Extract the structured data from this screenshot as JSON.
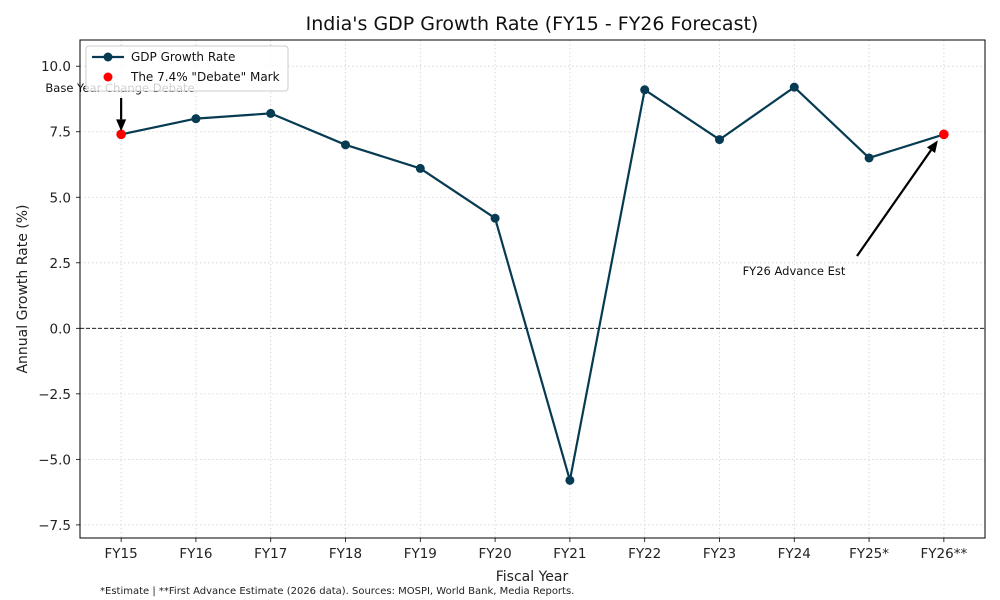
{
  "chart_data": {
    "type": "line",
    "title": "India's GDP Growth Rate (FY15 - FY26 Forecast)",
    "xlabel": "Fiscal Year",
    "ylabel": "Annual Growth Rate (%)",
    "categories": [
      "FY15",
      "FY16",
      "FY17",
      "FY18",
      "FY19",
      "FY20",
      "FY21",
      "FY22",
      "FY23",
      "FY24",
      "FY25*",
      "FY26**"
    ],
    "series": [
      {
        "name": "GDP Growth Rate",
        "color": "#073b52",
        "values": [
          7.4,
          8.0,
          8.2,
          7.0,
          6.1,
          4.2,
          -5.8,
          9.1,
          7.2,
          9.2,
          6.5,
          7.4
        ]
      },
      {
        "name": "The 7.4% \"Debate\" Mark",
        "color": "#ff0000",
        "type": "scatter",
        "points": [
          {
            "category": "FY15",
            "value": 7.4
          },
          {
            "category": "FY26**",
            "value": 7.4
          }
        ]
      }
    ],
    "ylim": [
      -8.0,
      11.0
    ],
    "yticks": [
      -7.5,
      -5.0,
      -2.5,
      0.0,
      2.5,
      5.0,
      7.5,
      10.0
    ],
    "ytick_labels": [
      "−7.5",
      "−5.0",
      "−2.5",
      "0.0",
      "2.5",
      "5.0",
      "7.5",
      "10.0"
    ],
    "grid": true,
    "reference_line": {
      "y": 0.0,
      "style": "dashed",
      "color": "#000000"
    },
    "legend": {
      "position": "top-left",
      "entries": [
        "GDP Growth Rate",
        "The 7.4% \"Debate\" Mark"
      ]
    },
    "annotations": [
      {
        "text": "Base Year Change Debate",
        "target_category": "FY15",
        "target_value": 7.4
      },
      {
        "text": "FY26 Advance Est",
        "target_category": "FY26**",
        "target_value": 7.4
      }
    ],
    "footnote": "*Estimate | **First Advance Estimate (2026 data). Sources: MOSPI, World Bank, Media Reports."
  }
}
